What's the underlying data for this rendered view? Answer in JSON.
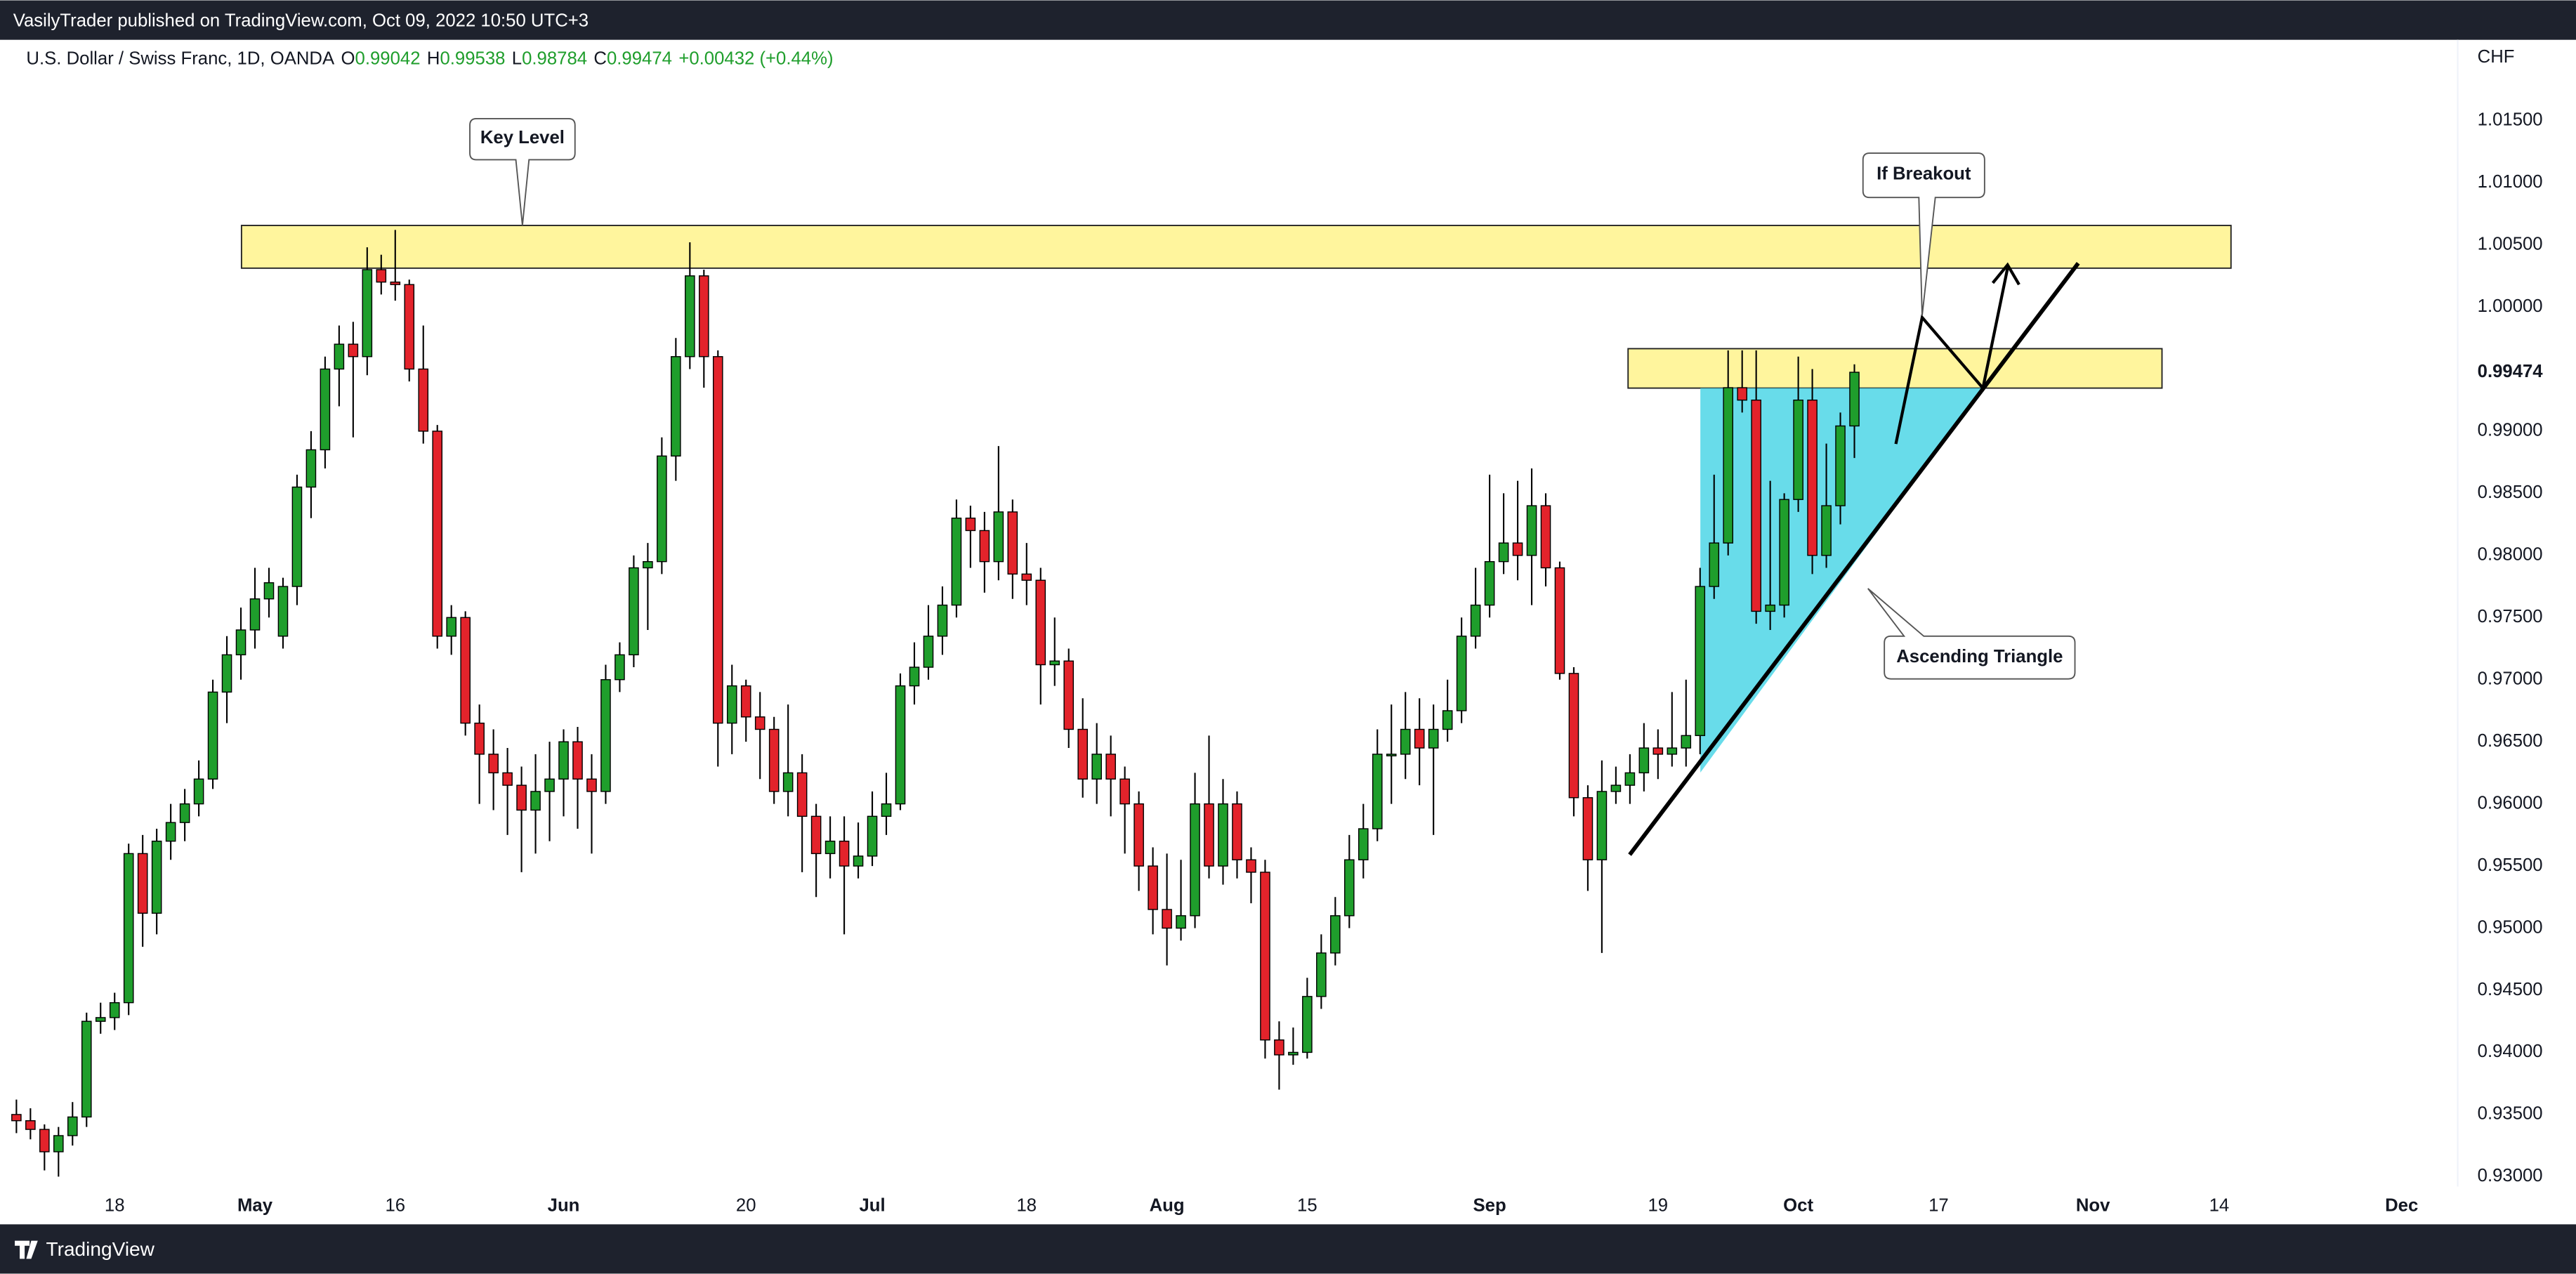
{
  "published": "VasilyTrader published on TradingView.com, Oct 09, 2022 10:50 UTC+3",
  "footer": "TradingView",
  "chart_data": {
    "type": "candlestick",
    "title": "U.S. Dollar / Swiss Franc, 1D, OANDA",
    "legend_labels": [
      "O",
      "H",
      "L",
      "C"
    ],
    "change": "+0.00432 (+0.44%)",
    "currency": "CHF",
    "annotations": [
      "Key Level",
      "If Breakout",
      "Ascending Triangle"
    ],
    "up_color": "#1f9e2c",
    "down_color": "#e3232b",
    "xlim": [
      -1.17,
      174
    ],
    "ylim": [
      0.9292,
      1.0215
    ],
    "xticks": [
      {
        "value": 7,
        "label": "18"
      },
      {
        "value": 17,
        "label": "May"
      },
      {
        "value": 27,
        "label": "16"
      },
      {
        "value": 39,
        "label": "Jun"
      },
      {
        "value": 52,
        "label": "20"
      },
      {
        "value": 61,
        "label": "Jul"
      },
      {
        "value": 72,
        "label": "18"
      },
      {
        "value": 82,
        "label": "Aug"
      },
      {
        "value": 92,
        "label": "15"
      },
      {
        "value": 105,
        "label": "Sep"
      },
      {
        "value": 117,
        "label": "19"
      },
      {
        "value": 127,
        "label": "Oct"
      },
      {
        "value": 137,
        "label": "17"
      },
      {
        "value": 148,
        "label": "Nov"
      },
      {
        "value": 157,
        "label": "14"
      },
      {
        "value": 170,
        "label": "Dec"
      }
    ],
    "yticks": [
      {
        "value": 0.93,
        "label": "0.93000"
      },
      {
        "value": 0.935,
        "label": "0.93500"
      },
      {
        "value": 0.94,
        "label": "0.94000"
      },
      {
        "value": 0.945,
        "label": "0.94500"
      },
      {
        "value": 0.95,
        "label": "0.95000"
      },
      {
        "value": 0.955,
        "label": "0.95500"
      },
      {
        "value": 0.96,
        "label": "0.96000"
      },
      {
        "value": 0.965,
        "label": "0.96500"
      },
      {
        "value": 0.97,
        "label": "0.97000"
      },
      {
        "value": 0.975,
        "label": "0.97500"
      },
      {
        "value": 0.98,
        "label": "0.98000"
      },
      {
        "value": 0.985,
        "label": "0.98500"
      },
      {
        "value": 0.99,
        "label": "0.99000"
      },
      {
        "value": 1.0,
        "label": "1.00000"
      },
      {
        "value": 1.005,
        "label": "1.00500"
      },
      {
        "value": 1.01,
        "label": "1.01000"
      },
      {
        "value": 1.015,
        "label": "1.01500"
      }
    ],
    "ohlc": [
      [
        0.935,
        0.9362,
        0.9335,
        0.9345
      ],
      [
        0.9345,
        0.9355,
        0.933,
        0.9338
      ],
      [
        0.9338,
        0.9342,
        0.9305,
        0.932
      ],
      [
        0.932,
        0.934,
        0.93,
        0.9333
      ],
      [
        0.9333,
        0.936,
        0.9325,
        0.9348
      ],
      [
        0.9348,
        0.9432,
        0.934,
        0.9425
      ],
      [
        0.9425,
        0.944,
        0.9415,
        0.9428
      ],
      [
        0.9428,
        0.9448,
        0.9418,
        0.944
      ],
      [
        0.944,
        0.9568,
        0.943,
        0.956
      ],
      [
        0.956,
        0.9575,
        0.9485,
        0.9512
      ],
      [
        0.9512,
        0.958,
        0.9495,
        0.957
      ],
      [
        0.957,
        0.96,
        0.9555,
        0.9585
      ],
      [
        0.9585,
        0.9612,
        0.957,
        0.96
      ],
      [
        0.96,
        0.9635,
        0.959,
        0.962
      ],
      [
        0.962,
        0.97,
        0.9612,
        0.969
      ],
      [
        0.969,
        0.9735,
        0.9665,
        0.972
      ],
      [
        0.972,
        0.9758,
        0.97,
        0.974
      ],
      [
        0.974,
        0.979,
        0.9725,
        0.9765
      ],
      [
        0.9765,
        0.979,
        0.975,
        0.9778
      ],
      [
        0.9735,
        0.9782,
        0.9725,
        0.9775
      ],
      [
        0.9775,
        0.9865,
        0.976,
        0.9855
      ],
      [
        0.9855,
        0.99,
        0.983,
        0.9885
      ],
      [
        0.9885,
        0.996,
        0.987,
        0.995
      ],
      [
        0.995,
        0.9985,
        0.992,
        0.997
      ],
      [
        0.997,
        0.9988,
        0.9895,
        0.996
      ],
      [
        0.996,
        1.0048,
        0.9945,
        1.003
      ],
      [
        1.003,
        1.0042,
        1.001,
        1.002
      ],
      [
        1.002,
        1.0062,
        1.0005,
        1.0018
      ],
      [
        1.0018,
        1.0022,
        0.994,
        0.995
      ],
      [
        0.995,
        0.9985,
        0.989,
        0.99
      ],
      [
        0.99,
        0.9905,
        0.9725,
        0.9735
      ],
      [
        0.9735,
        0.976,
        0.972,
        0.975
      ],
      [
        0.975,
        0.9755,
        0.9655,
        0.9665
      ],
      [
        0.9665,
        0.968,
        0.96,
        0.964
      ],
      [
        0.964,
        0.966,
        0.9595,
        0.9625
      ],
      [
        0.9625,
        0.9645,
        0.9575,
        0.9615
      ],
      [
        0.9615,
        0.963,
        0.9545,
        0.9595
      ],
      [
        0.9595,
        0.964,
        0.956,
        0.961
      ],
      [
        0.961,
        0.965,
        0.957,
        0.962
      ],
      [
        0.962,
        0.966,
        0.959,
        0.965
      ],
      [
        0.965,
        0.9662,
        0.958,
        0.962
      ],
      [
        0.962,
        0.964,
        0.956,
        0.961
      ],
      [
        0.961,
        0.9712,
        0.96,
        0.97
      ],
      [
        0.97,
        0.973,
        0.969,
        0.972
      ],
      [
        0.972,
        0.98,
        0.971,
        0.979
      ],
      [
        0.979,
        0.981,
        0.974,
        0.9795
      ],
      [
        0.9795,
        0.9895,
        0.9785,
        0.988
      ],
      [
        0.988,
        0.9975,
        0.986,
        0.996
      ],
      [
        0.996,
        1.0052,
        0.995,
        1.0025
      ],
      [
        1.0025,
        1.003,
        0.9935,
        0.996
      ],
      [
        0.996,
        0.9965,
        0.963,
        0.9665
      ],
      [
        0.9665,
        0.9712,
        0.964,
        0.9695
      ],
      [
        0.9695,
        0.97,
        0.965,
        0.967
      ],
      [
        0.967,
        0.969,
        0.962,
        0.966
      ],
      [
        0.966,
        0.967,
        0.96,
        0.961
      ],
      [
        0.961,
        0.968,
        0.959,
        0.9625
      ],
      [
        0.9625,
        0.964,
        0.9545,
        0.959
      ],
      [
        0.959,
        0.96,
        0.9525,
        0.956
      ],
      [
        0.956,
        0.959,
        0.954,
        0.957
      ],
      [
        0.957,
        0.959,
        0.9495,
        0.955
      ],
      [
        0.955,
        0.9585,
        0.954,
        0.9558
      ],
      [
        0.9558,
        0.961,
        0.955,
        0.959
      ],
      [
        0.959,
        0.9625,
        0.9575,
        0.96
      ],
      [
        0.96,
        0.9705,
        0.9595,
        0.9695
      ],
      [
        0.9695,
        0.973,
        0.968,
        0.971
      ],
      [
        0.971,
        0.976,
        0.97,
        0.9735
      ],
      [
        0.9735,
        0.9775,
        0.972,
        0.976
      ],
      [
        0.976,
        0.9845,
        0.975,
        0.983
      ],
      [
        0.983,
        0.984,
        0.979,
        0.982
      ],
      [
        0.982,
        0.9835,
        0.977,
        0.9795
      ],
      [
        0.9795,
        0.9888,
        0.978,
        0.9835
      ],
      [
        0.9835,
        0.9845,
        0.9765,
        0.9785
      ],
      [
        0.9785,
        0.981,
        0.976,
        0.978
      ],
      [
        0.978,
        0.979,
        0.968,
        0.9712
      ],
      [
        0.9712,
        0.975,
        0.9695,
        0.9715
      ],
      [
        0.9715,
        0.9725,
        0.9645,
        0.966
      ],
      [
        0.966,
        0.9685,
        0.9605,
        0.962
      ],
      [
        0.962,
        0.9665,
        0.96,
        0.964
      ],
      [
        0.964,
        0.9655,
        0.959,
        0.962
      ],
      [
        0.962,
        0.963,
        0.956,
        0.96
      ],
      [
        0.96,
        0.961,
        0.953,
        0.955
      ],
      [
        0.955,
        0.9565,
        0.9495,
        0.9515
      ],
      [
        0.9515,
        0.956,
        0.947,
        0.95
      ],
      [
        0.95,
        0.9555,
        0.949,
        0.951
      ],
      [
        0.951,
        0.9625,
        0.95,
        0.96
      ],
      [
        0.96,
        0.9655,
        0.954,
        0.955
      ],
      [
        0.955,
        0.962,
        0.9535,
        0.96
      ],
      [
        0.96,
        0.961,
        0.954,
        0.9555
      ],
      [
        0.9555,
        0.9565,
        0.952,
        0.9545
      ],
      [
        0.9545,
        0.9555,
        0.9395,
        0.941
      ],
      [
        0.941,
        0.9425,
        0.937,
        0.9398
      ],
      [
        0.9398,
        0.942,
        0.939,
        0.94
      ],
      [
        0.94,
        0.946,
        0.9395,
        0.9445
      ],
      [
        0.9445,
        0.9495,
        0.9435,
        0.948
      ],
      [
        0.948,
        0.9525,
        0.947,
        0.951
      ],
      [
        0.951,
        0.9575,
        0.95,
        0.9555
      ],
      [
        0.9555,
        0.96,
        0.954,
        0.958
      ],
      [
        0.958,
        0.966,
        0.957,
        0.964
      ],
      [
        0.964,
        0.968,
        0.96,
        0.964
      ],
      [
        0.964,
        0.969,
        0.962,
        0.966
      ],
      [
        0.966,
        0.9685,
        0.9615,
        0.9645
      ],
      [
        0.9645,
        0.968,
        0.9575,
        0.966
      ],
      [
        0.966,
        0.97,
        0.965,
        0.9675
      ],
      [
        0.9675,
        0.975,
        0.9665,
        0.9735
      ],
      [
        0.9735,
        0.979,
        0.9725,
        0.976
      ],
      [
        0.976,
        0.9865,
        0.975,
        0.9795
      ],
      [
        0.9795,
        0.985,
        0.9785,
        0.981
      ],
      [
        0.981,
        0.986,
        0.978,
        0.98
      ],
      [
        0.98,
        0.987,
        0.976,
        0.984
      ],
      [
        0.984,
        0.985,
        0.9775,
        0.979
      ],
      [
        0.979,
        0.9795,
        0.97,
        0.9705
      ],
      [
        0.9705,
        0.971,
        0.959,
        0.9605
      ],
      [
        0.9605,
        0.9615,
        0.953,
        0.9555
      ],
      [
        0.9555,
        0.9635,
        0.948,
        0.961
      ],
      [
        0.961,
        0.963,
        0.96,
        0.9615
      ],
      [
        0.9615,
        0.964,
        0.96,
        0.9625
      ],
      [
        0.9625,
        0.9665,
        0.961,
        0.9645
      ],
      [
        0.9645,
        0.966,
        0.962,
        0.964
      ],
      [
        0.964,
        0.969,
        0.963,
        0.9645
      ],
      [
        0.9645,
        0.97,
        0.963,
        0.9655
      ],
      [
        0.9655,
        0.979,
        0.964,
        0.9775
      ],
      [
        0.9775,
        0.9865,
        0.9765,
        0.981
      ],
      [
        0.981,
        0.9965,
        0.98,
        0.9935
      ],
      [
        0.9935,
        0.9965,
        0.9915,
        0.9925
      ],
      [
        0.9925,
        0.9965,
        0.9745,
        0.9755
      ],
      [
        0.9755,
        0.986,
        0.974,
        0.976
      ],
      [
        0.976,
        0.985,
        0.975,
        0.9845
      ],
      [
        0.9845,
        0.996,
        0.9835,
        0.9925
      ],
      [
        0.9925,
        0.995,
        0.9785,
        0.98
      ],
      [
        0.98,
        0.989,
        0.979,
        0.984
      ],
      [
        0.984,
        0.9915,
        0.9825,
        0.99042
      ],
      [
        0.99042,
        0.99538,
        0.98784,
        0.99474
      ]
    ]
  }
}
